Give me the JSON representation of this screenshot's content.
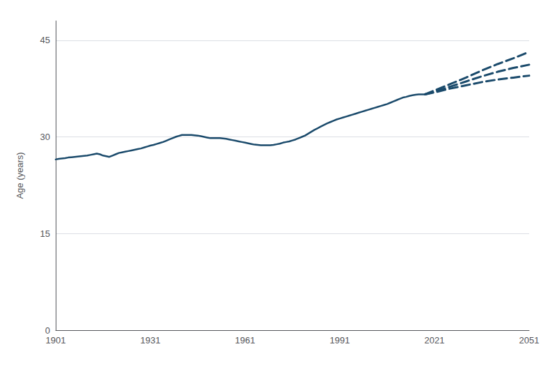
{
  "chart_data": {
    "type": "line",
    "ylabel": "Age (years)",
    "color": "#1a4a6b",
    "grid": true,
    "xlim": [
      1901,
      2051
    ],
    "ylim": [
      0,
      48
    ],
    "xticks": [
      1901,
      1931,
      1961,
      1991,
      2021,
      2051
    ],
    "yticks": [
      0,
      15,
      30,
      45
    ],
    "series": [
      {
        "line_style": "solid",
        "x": [
          1901,
          1902,
          1903,
          1904,
          1905,
          1906,
          1907,
          1908,
          1909,
          1910,
          1911,
          1912,
          1913,
          1914,
          1915,
          1916,
          1917,
          1918,
          1919,
          1920,
          1921,
          1922,
          1923,
          1924,
          1925,
          1926,
          1927,
          1928,
          1929,
          1930,
          1931,
          1932,
          1933,
          1934,
          1935,
          1936,
          1937,
          1938,
          1939,
          1940,
          1941,
          1942,
          1943,
          1944,
          1945,
          1946,
          1947,
          1948,
          1949,
          1950,
          1951,
          1952,
          1953,
          1954,
          1955,
          1956,
          1957,
          1958,
          1959,
          1960,
          1961,
          1962,
          1963,
          1964,
          1965,
          1966,
          1967,
          1968,
          1969,
          1970,
          1971,
          1972,
          1973,
          1974,
          1975,
          1976,
          1977,
          1978,
          1979,
          1980,
          1981,
          1982,
          1983,
          1984,
          1985,
          1986,
          1987,
          1988,
          1989,
          1990,
          1991,
          1992,
          1993,
          1994,
          1995,
          1996,
          1997,
          1998,
          1999,
          2000,
          2001,
          2002,
          2003,
          2004,
          2005,
          2006,
          2007,
          2008,
          2009,
          2010,
          2011,
          2012,
          2013,
          2014,
          2015,
          2016,
          2017,
          2018
        ],
        "values": [
          26.5,
          26.6,
          26.65,
          26.7,
          26.8,
          26.85,
          26.9,
          26.95,
          27.0,
          27.05,
          27.1,
          27.2,
          27.3,
          27.4,
          27.3,
          27.1,
          27.0,
          26.9,
          27.1,
          27.3,
          27.5,
          27.6,
          27.7,
          27.8,
          27.9,
          28.0,
          28.1,
          28.2,
          28.35,
          28.5,
          28.65,
          28.75,
          28.9,
          29.05,
          29.2,
          29.4,
          29.6,
          29.8,
          30.0,
          30.15,
          30.3,
          30.3,
          30.3,
          30.3,
          30.25,
          30.2,
          30.1,
          30.0,
          29.9,
          29.8,
          29.8,
          29.8,
          29.8,
          29.75,
          29.7,
          29.6,
          29.5,
          29.4,
          29.3,
          29.2,
          29.1,
          29.0,
          28.9,
          28.8,
          28.75,
          28.7,
          28.7,
          28.7,
          28.7,
          28.75,
          28.85,
          28.95,
          29.1,
          29.2,
          29.3,
          29.45,
          29.6,
          29.8,
          30.0,
          30.2,
          30.5,
          30.8,
          31.1,
          31.35,
          31.6,
          31.85,
          32.1,
          32.3,
          32.5,
          32.7,
          32.85,
          33.0,
          33.15,
          33.3,
          33.45,
          33.6,
          33.75,
          33.9,
          34.05,
          34.2,
          34.35,
          34.5,
          34.65,
          34.8,
          34.95,
          35.1,
          35.3,
          35.5,
          35.7,
          35.9,
          36.1,
          36.2,
          36.35,
          36.45,
          36.55,
          36.6,
          36.6,
          36.6
        ]
      },
      {
        "line_style": "dashed",
        "x": [
          2018,
          2021,
          2026,
          2031,
          2036,
          2041,
          2046,
          2051
        ],
        "values": [
          36.6,
          37.2,
          38.2,
          39.2,
          40.3,
          41.3,
          42.2,
          43.2
        ]
      },
      {
        "line_style": "dashed",
        "x": [
          2018,
          2021,
          2026,
          2031,
          2036,
          2041,
          2046,
          2051
        ],
        "values": [
          36.6,
          37.0,
          37.8,
          38.6,
          39.4,
          40.1,
          40.7,
          41.2
        ]
      },
      {
        "line_style": "dashed",
        "x": [
          2018,
          2021,
          2026,
          2031,
          2036,
          2041,
          2046,
          2051
        ],
        "values": [
          36.6,
          36.9,
          37.5,
          38.0,
          38.5,
          38.9,
          39.2,
          39.5
        ]
      }
    ]
  }
}
